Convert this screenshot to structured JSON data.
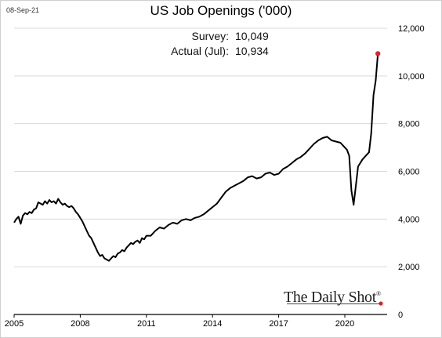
{
  "date_label": "08-Sep-21",
  "annotations": [
    {
      "label": "Survey:",
      "value": "10,049"
    },
    {
      "label": "Actual (Jul):",
      "value": "10,934"
    }
  ],
  "brand": {
    "name": "The Daily Shot",
    "mark": "®"
  },
  "colors": {
    "line": "#000000",
    "highlight": "#e8202a",
    "grid": "#d9d9d9"
  },
  "chart_data": {
    "type": "line",
    "title": "US Job Openings ('000)",
    "xlabel": "",
    "ylabel": "",
    "xlim": [
      2005.0,
      2021.92
    ],
    "ylim": [
      0,
      12000
    ],
    "x_ticks": [
      2005,
      2008,
      2011,
      2014,
      2017,
      2020
    ],
    "x_tick_labels": [
      "2005",
      "2008",
      "2011",
      "2014",
      "2017",
      "2020"
    ],
    "y_ticks": [
      0,
      2000,
      4000,
      6000,
      8000,
      10000,
      12000
    ],
    "y_tick_labels": [
      "0",
      "2,000",
      "4,000",
      "6,000",
      "8,000",
      "10,000",
      "12,000"
    ],
    "y_axis_side": "right",
    "grid": "horizontal",
    "series": [
      {
        "x": [
          2005.0,
          2005.1,
          2005.2,
          2005.3,
          2005.4,
          2005.5,
          2005.6,
          2005.7,
          2005.8,
          2005.9,
          2006.0,
          2006.1,
          2006.2,
          2006.3,
          2006.4,
          2006.5,
          2006.6,
          2006.7,
          2006.8,
          2006.9,
          2007.0,
          2007.1,
          2007.2,
          2007.3,
          2007.4,
          2007.5,
          2007.6,
          2007.7,
          2007.8,
          2007.9,
          2008.0,
          2008.1,
          2008.2,
          2008.3,
          2008.4,
          2008.5,
          2008.6,
          2008.7,
          2008.8,
          2008.9,
          2009.0,
          2009.1,
          2009.2,
          2009.3,
          2009.4,
          2009.5,
          2009.6,
          2009.7,
          2009.8,
          2009.9,
          2010.0,
          2010.1,
          2010.2,
          2010.3,
          2010.4,
          2010.5,
          2010.6,
          2010.7,
          2010.8,
          2010.9,
          2011.0,
          2011.2,
          2011.4,
          2011.6,
          2011.8,
          2012.0,
          2012.2,
          2012.4,
          2012.6,
          2012.8,
          2013.0,
          2013.2,
          2013.4,
          2013.6,
          2013.8,
          2014.0,
          2014.2,
          2014.4,
          2014.6,
          2014.8,
          2015.0,
          2015.2,
          2015.4,
          2015.6,
          2015.8,
          2016.0,
          2016.2,
          2016.4,
          2016.6,
          2016.8,
          2017.0,
          2017.2,
          2017.4,
          2017.6,
          2017.8,
          2018.0,
          2018.2,
          2018.4,
          2018.6,
          2018.8,
          2019.0,
          2019.2,
          2019.4,
          2019.6,
          2019.8,
          2020.0,
          2020.1,
          2020.2,
          2020.3,
          2020.4,
          2020.5,
          2020.6,
          2020.8,
          2021.0,
          2021.1,
          2021.2,
          2021.3,
          2021.4,
          2021.5
        ],
        "y": [
          3850,
          4000,
          4100,
          3800,
          4150,
          4250,
          4200,
          4300,
          4250,
          4400,
          4450,
          4700,
          4650,
          4600,
          4750,
          4650,
          4800,
          4700,
          4750,
          4650,
          4850,
          4700,
          4600,
          4650,
          4550,
          4500,
          4550,
          4450,
          4300,
          4200,
          4050,
          3900,
          3700,
          3500,
          3300,
          3200,
          3000,
          2800,
          2600,
          2450,
          2500,
          2350,
          2300,
          2250,
          2350,
          2450,
          2400,
          2550,
          2600,
          2700,
          2650,
          2800,
          2900,
          3000,
          2950,
          3050,
          3100,
          3000,
          3200,
          3150,
          3300,
          3300,
          3500,
          3650,
          3600,
          3750,
          3850,
          3800,
          3950,
          4000,
          3950,
          4050,
          4100,
          4200,
          4350,
          4500,
          4650,
          4900,
          5150,
          5300,
          5400,
          5500,
          5600,
          5750,
          5800,
          5700,
          5750,
          5900,
          5950,
          5850,
          5900,
          6100,
          6200,
          6350,
          6500,
          6600,
          6750,
          6950,
          7150,
          7300,
          7400,
          7450,
          7300,
          7250,
          7200,
          7000,
          6900,
          6650,
          5200,
          4600,
          5400,
          6200,
          6500,
          6700,
          6800,
          7600,
          9200,
          9800,
          10934
        ]
      }
    ]
  }
}
